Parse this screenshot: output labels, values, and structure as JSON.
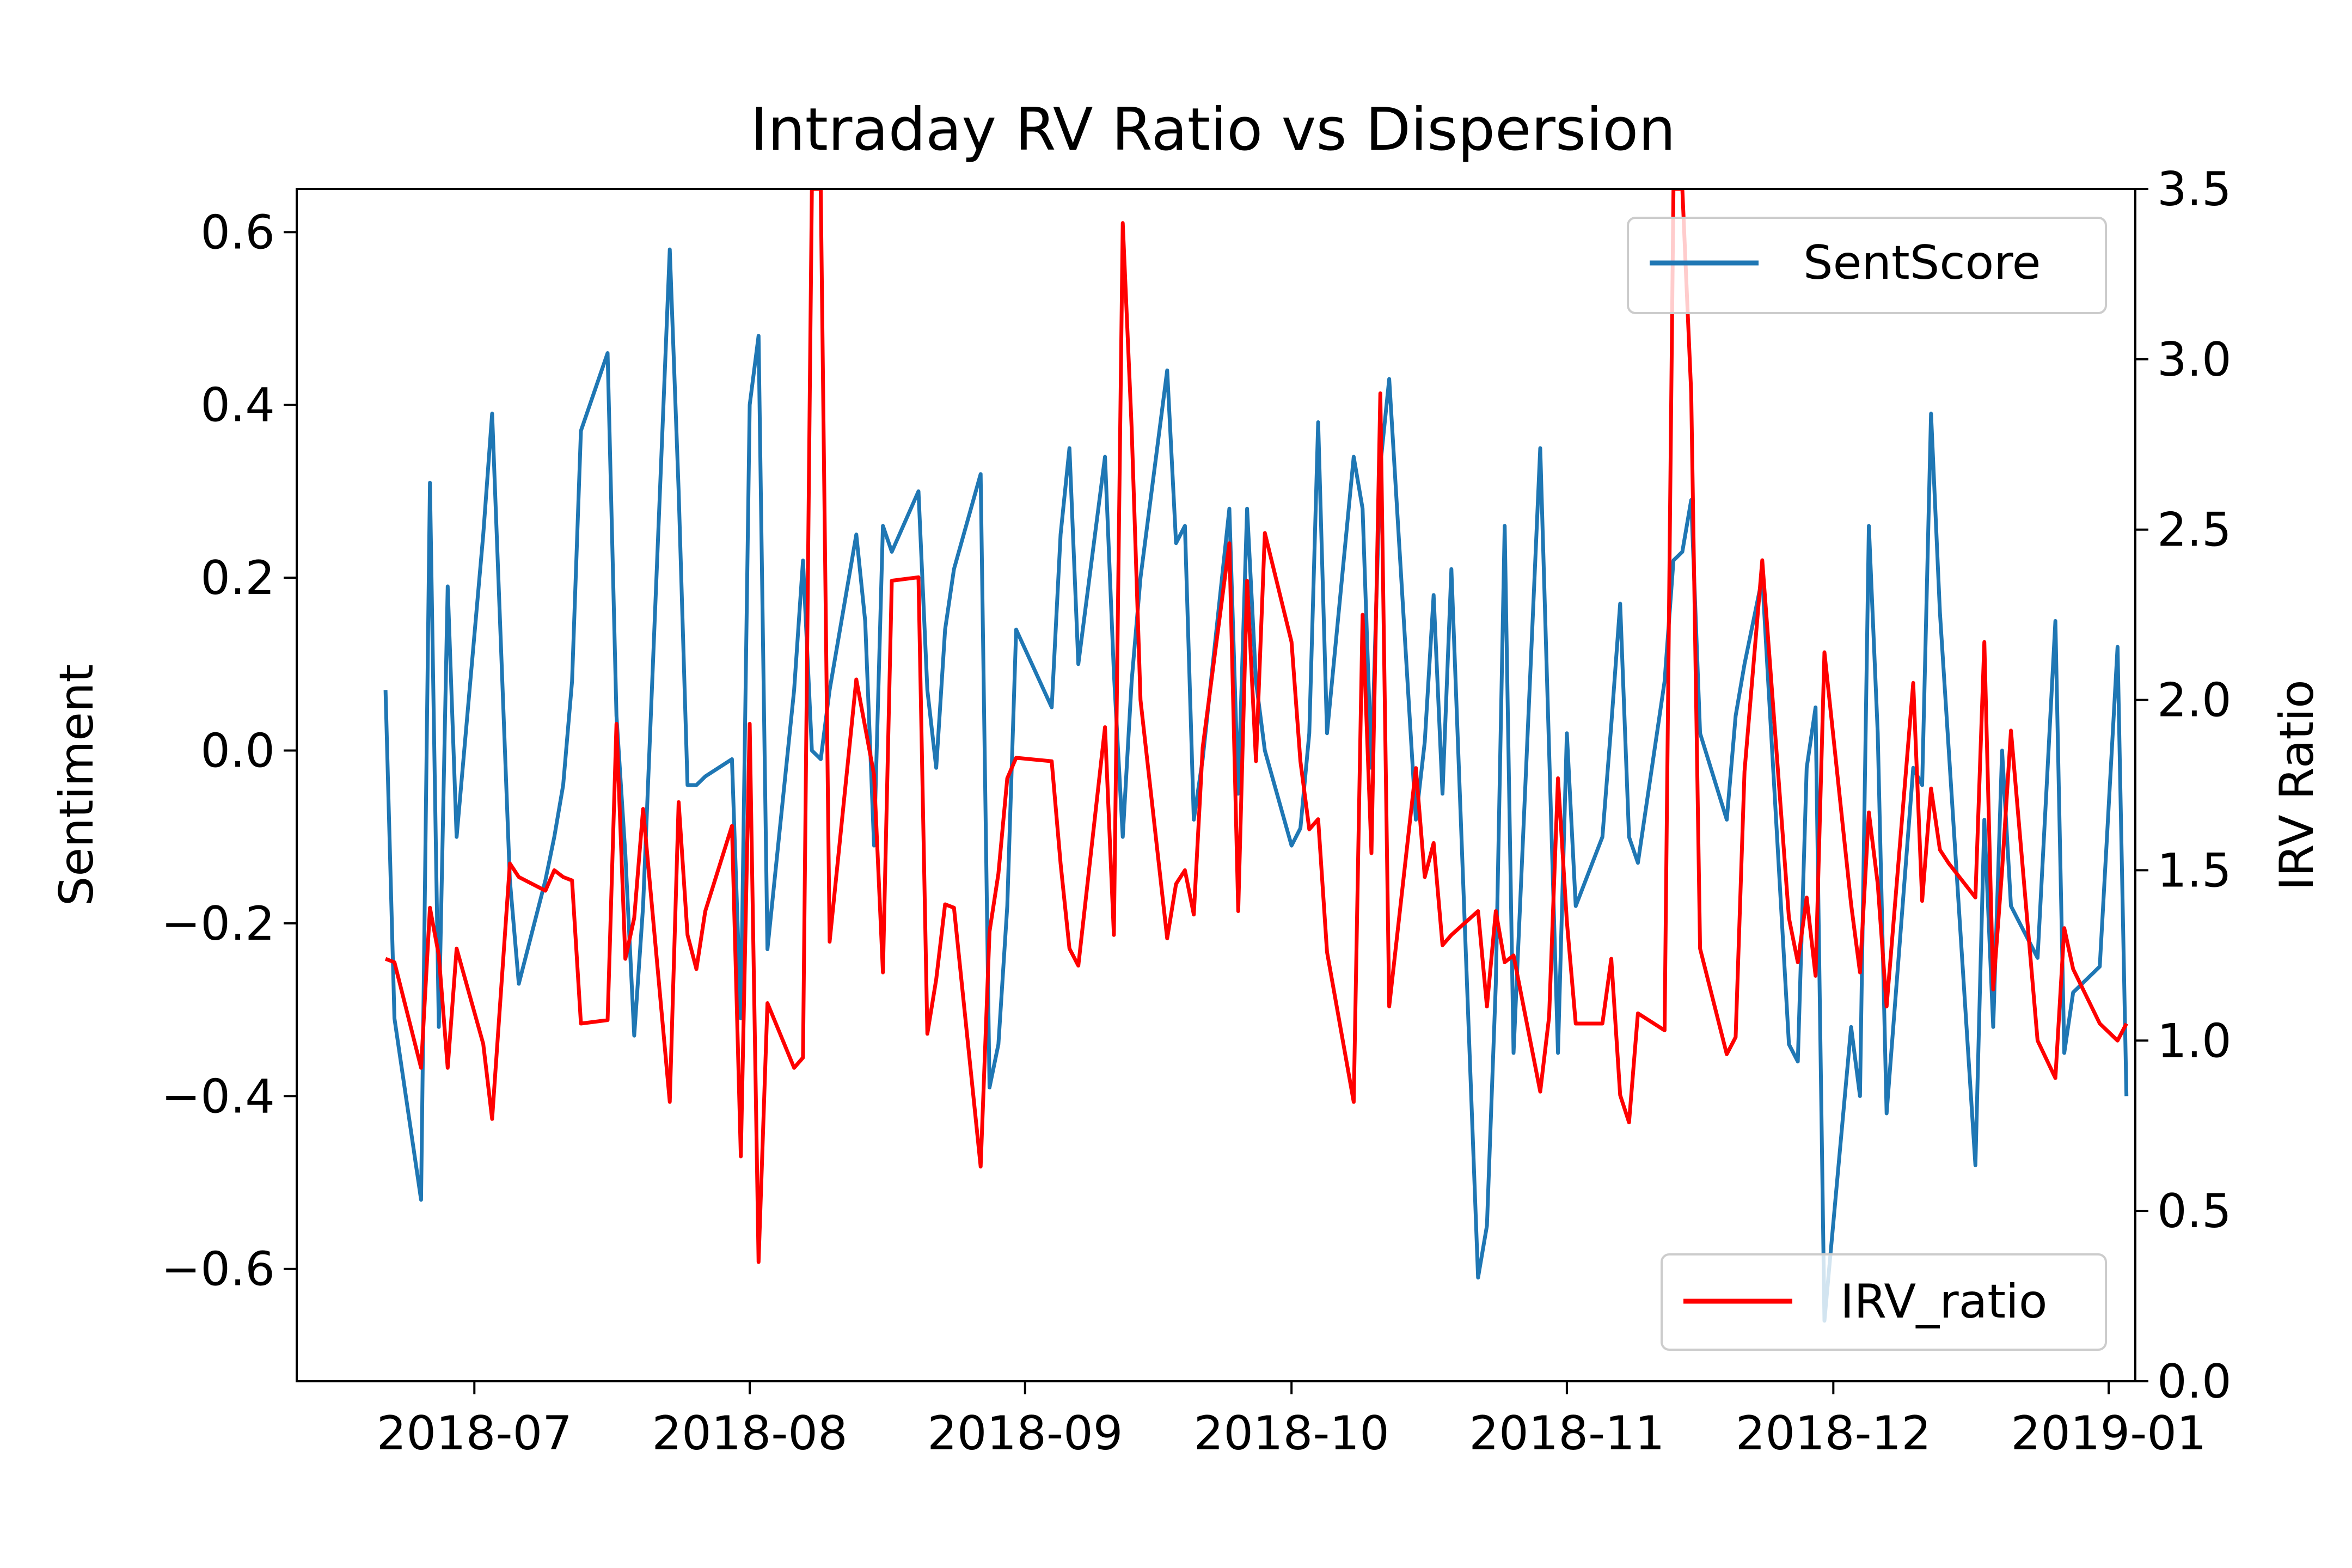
{
  "chart_data": {
    "type": "line",
    "title": "Intraday RV Ratio vs Dispersion",
    "xlabel": "",
    "ylabel": "Sentiment",
    "y2label": "IRV Ratio",
    "x_ticks": [
      "2018-07",
      "2018-08",
      "2018-09",
      "2018-10",
      "2018-11",
      "2018-12",
      "2019-01"
    ],
    "x_range": [
      "2018-06-11",
      "2019-01-04"
    ],
    "y_ticks": [
      "0.6",
      "0.4",
      "0.2",
      "0.0",
      "−0.2",
      "−0.4",
      "−0.6"
    ],
    "y_ticks_values": [
      0.6,
      0.4,
      0.2,
      0.0,
      -0.2,
      -0.4,
      -0.6
    ],
    "ylim": [
      -0.73,
      0.65
    ],
    "y2_ticks": [
      "3.5",
      "3.0",
      "2.5",
      "2.0",
      "1.5",
      "1.0",
      "0.5",
      "0.0"
    ],
    "y2_ticks_values": [
      3.5,
      3.0,
      2.5,
      2.0,
      1.5,
      1.0,
      0.5,
      0.0
    ],
    "y2lim": [
      0.0,
      3.5
    ],
    "grid": false,
    "legend_left": {
      "position": "upper right",
      "label": "SentScore"
    },
    "legend_right": {
      "position": "lower right",
      "label": "IRV_ratio"
    },
    "series": [
      {
        "name": "SentScore",
        "axis": "left",
        "color": "#1f77b4",
        "points": [
          [
            "2018-06-21",
            0.07
          ],
          [
            "2018-06-22",
            -0.31
          ],
          [
            "2018-06-25",
            -0.52
          ],
          [
            "2018-06-26",
            0.31
          ],
          [
            "2018-06-27",
            -0.32
          ],
          [
            "2018-06-28",
            0.19
          ],
          [
            "2018-06-29",
            -0.1
          ],
          [
            "2018-07-02",
            0.25
          ],
          [
            "2018-07-03",
            0.39
          ],
          [
            "2018-07-05",
            -0.15
          ],
          [
            "2018-07-06",
            -0.27
          ],
          [
            "2018-07-09",
            -0.15
          ],
          [
            "2018-07-10",
            -0.1
          ],
          [
            "2018-07-11",
            -0.04
          ],
          [
            "2018-07-12",
            0.08
          ],
          [
            "2018-07-13",
            0.37
          ],
          [
            "2018-07-16",
            0.46
          ],
          [
            "2018-07-17",
            0.04
          ],
          [
            "2018-07-18",
            -0.12
          ],
          [
            "2018-07-19",
            -0.33
          ],
          [
            "2018-07-20",
            -0.18
          ],
          [
            "2018-07-23",
            0.58
          ],
          [
            "2018-07-24",
            0.3
          ],
          [
            "2018-07-25",
            -0.04
          ],
          [
            "2018-07-26",
            -0.04
          ],
          [
            "2018-07-27",
            -0.03
          ],
          [
            "2018-07-30",
            -0.01
          ],
          [
            "2018-07-31",
            -0.31
          ],
          [
            "2018-08-01",
            0.4
          ],
          [
            "2018-08-02",
            0.48
          ],
          [
            "2018-08-03",
            -0.23
          ],
          [
            "2018-08-06",
            0.07
          ],
          [
            "2018-08-07",
            0.22
          ],
          [
            "2018-08-08",
            0.0
          ],
          [
            "2018-08-09",
            -0.01
          ],
          [
            "2018-08-10",
            0.07
          ],
          [
            "2018-08-13",
            0.25
          ],
          [
            "2018-08-14",
            0.15
          ],
          [
            "2018-08-15",
            -0.11
          ],
          [
            "2018-08-16",
            0.26
          ],
          [
            "2018-08-17",
            0.23
          ],
          [
            "2018-08-20",
            0.3
          ],
          [
            "2018-08-21",
            0.07
          ],
          [
            "2018-08-22",
            -0.02
          ],
          [
            "2018-08-23",
            0.14
          ],
          [
            "2018-08-24",
            0.21
          ],
          [
            "2018-08-27",
            0.32
          ],
          [
            "2018-08-28",
            -0.39
          ],
          [
            "2018-08-29",
            -0.34
          ],
          [
            "2018-08-30",
            -0.18
          ],
          [
            "2018-08-31",
            0.14
          ],
          [
            "2018-09-04",
            0.05
          ],
          [
            "2018-09-05",
            0.25
          ],
          [
            "2018-09-06",
            0.35
          ],
          [
            "2018-09-07",
            0.1
          ],
          [
            "2018-09-10",
            0.34
          ],
          [
            "2018-09-11",
            0.09
          ],
          [
            "2018-09-12",
            -0.1
          ],
          [
            "2018-09-13",
            0.08
          ],
          [
            "2018-09-14",
            0.2
          ],
          [
            "2018-09-17",
            0.44
          ],
          [
            "2018-09-18",
            0.24
          ],
          [
            "2018-09-19",
            0.26
          ],
          [
            "2018-09-20",
            -0.08
          ],
          [
            "2018-09-21",
            -0.01
          ],
          [
            "2018-09-24",
            0.28
          ],
          [
            "2018-09-25",
            -0.05
          ],
          [
            "2018-09-26",
            0.28
          ],
          [
            "2018-09-27",
            0.08
          ],
          [
            "2018-09-28",
            0.0
          ],
          [
            "2018-10-01",
            -0.11
          ],
          [
            "2018-10-02",
            -0.09
          ],
          [
            "2018-10-03",
            0.02
          ],
          [
            "2018-10-04",
            0.38
          ],
          [
            "2018-10-05",
            0.02
          ],
          [
            "2018-10-08",
            0.34
          ],
          [
            "2018-10-09",
            0.28
          ],
          [
            "2018-10-10",
            -0.02
          ],
          [
            "2018-10-11",
            0.33
          ],
          [
            "2018-10-12",
            0.43
          ],
          [
            "2018-10-15",
            -0.08
          ],
          [
            "2018-10-16",
            0.01
          ],
          [
            "2018-10-17",
            0.18
          ],
          [
            "2018-10-18",
            -0.05
          ],
          [
            "2018-10-19",
            0.21
          ],
          [
            "2018-10-22",
            -0.61
          ],
          [
            "2018-10-23",
            -0.55
          ],
          [
            "2018-10-24",
            -0.27
          ],
          [
            "2018-10-25",
            0.26
          ],
          [
            "2018-10-26",
            -0.35
          ],
          [
            "2018-10-29",
            0.35
          ],
          [
            "2018-10-30",
            0.0
          ],
          [
            "2018-10-31",
            -0.35
          ],
          [
            "2018-11-01",
            0.02
          ],
          [
            "2018-11-02",
            -0.18
          ],
          [
            "2018-11-05",
            -0.1
          ],
          [
            "2018-11-06",
            0.03
          ],
          [
            "2018-11-07",
            0.17
          ],
          [
            "2018-11-08",
            -0.1
          ],
          [
            "2018-11-09",
            -0.13
          ],
          [
            "2018-11-12",
            0.08
          ],
          [
            "2018-11-13",
            0.22
          ],
          [
            "2018-11-14",
            0.23
          ],
          [
            "2018-11-15",
            0.29
          ],
          [
            "2018-11-16",
            0.02
          ],
          [
            "2018-11-19",
            -0.08
          ],
          [
            "2018-11-20",
            0.04
          ],
          [
            "2018-11-21",
            0.1
          ],
          [
            "2018-11-23",
            0.2
          ],
          [
            "2018-11-26",
            -0.34
          ],
          [
            "2018-11-27",
            -0.36
          ],
          [
            "2018-11-28",
            -0.02
          ],
          [
            "2018-11-29",
            0.05
          ],
          [
            "2018-11-30",
            -0.66
          ],
          [
            "2018-12-03",
            -0.32
          ],
          [
            "2018-12-04",
            -0.4
          ],
          [
            "2018-12-05",
            0.26
          ],
          [
            "2018-12-06",
            0.02
          ],
          [
            "2018-12-07",
            -0.42
          ],
          [
            "2018-12-10",
            -0.02
          ],
          [
            "2018-12-11",
            -0.04
          ],
          [
            "2018-12-12",
            0.39
          ],
          [
            "2018-12-13",
            0.16
          ],
          [
            "2018-12-14",
            0.0
          ],
          [
            "2018-12-17",
            -0.48
          ],
          [
            "2018-12-18",
            -0.08
          ],
          [
            "2018-12-19",
            -0.32
          ],
          [
            "2018-12-20",
            0.0
          ],
          [
            "2018-12-21",
            -0.18
          ],
          [
            "2018-12-24",
            -0.24
          ],
          [
            "2018-12-26",
            0.15
          ],
          [
            "2018-12-27",
            -0.35
          ],
          [
            "2018-12-28",
            -0.28
          ],
          [
            "2018-12-31",
            -0.25
          ],
          [
            "2019-01-02",
            0.12
          ],
          [
            "2019-01-03",
            -0.4
          ]
        ]
      },
      {
        "name": "IRV_ratio",
        "axis": "right",
        "color": "#ff0000",
        "points": [
          [
            "2018-06-21",
            1.24
          ],
          [
            "2018-06-22",
            1.23
          ],
          [
            "2018-06-25",
            0.92
          ],
          [
            "2018-06-26",
            1.39
          ],
          [
            "2018-06-27",
            1.25
          ],
          [
            "2018-06-28",
            0.92
          ],
          [
            "2018-06-29",
            1.27
          ],
          [
            "2018-07-02",
            0.99
          ],
          [
            "2018-07-03",
            0.77
          ],
          [
            "2018-07-05",
            1.52
          ],
          [
            "2018-07-06",
            1.48
          ],
          [
            "2018-07-09",
            1.44
          ],
          [
            "2018-07-10",
            1.5
          ],
          [
            "2018-07-11",
            1.48
          ],
          [
            "2018-07-12",
            1.47
          ],
          [
            "2018-07-13",
            1.05
          ],
          [
            "2018-07-16",
            1.06
          ],
          [
            "2018-07-17",
            1.93
          ],
          [
            "2018-07-18",
            1.24
          ],
          [
            "2018-07-19",
            1.36
          ],
          [
            "2018-07-20",
            1.68
          ],
          [
            "2018-07-23",
            0.82
          ],
          [
            "2018-07-24",
            1.7
          ],
          [
            "2018-07-25",
            1.31
          ],
          [
            "2018-07-26",
            1.21
          ],
          [
            "2018-07-27",
            1.38
          ],
          [
            "2018-07-30",
            1.63
          ],
          [
            "2018-07-31",
            0.66
          ],
          [
            "2018-08-01",
            1.93
          ],
          [
            "2018-08-02",
            0.35
          ],
          [
            "2018-08-03",
            1.11
          ],
          [
            "2018-08-06",
            0.92
          ],
          [
            "2018-08-07",
            0.95
          ],
          [
            "2018-08-08",
            3.5
          ],
          [
            "2018-08-09",
            3.5
          ],
          [
            "2018-08-10",
            1.29
          ],
          [
            "2018-08-13",
            2.06
          ],
          [
            "2018-08-14",
            1.92
          ],
          [
            "2018-08-15",
            1.78
          ],
          [
            "2018-08-16",
            1.2
          ],
          [
            "2018-08-17",
            2.35
          ],
          [
            "2018-08-20",
            2.36
          ],
          [
            "2018-08-21",
            1.02
          ],
          [
            "2018-08-22",
            1.18
          ],
          [
            "2018-08-23",
            1.4
          ],
          [
            "2018-08-24",
            1.39
          ],
          [
            "2018-08-27",
            0.63
          ],
          [
            "2018-08-28",
            1.32
          ],
          [
            "2018-08-29",
            1.49
          ],
          [
            "2018-08-30",
            1.77
          ],
          [
            "2018-08-31",
            1.83
          ],
          [
            "2018-09-04",
            1.82
          ],
          [
            "2018-09-05",
            1.52
          ],
          [
            "2018-09-06",
            1.27
          ],
          [
            "2018-09-07",
            1.22
          ],
          [
            "2018-09-10",
            1.92
          ],
          [
            "2018-09-11",
            1.31
          ],
          [
            "2018-09-12",
            3.4
          ],
          [
            "2018-09-13",
            2.8
          ],
          [
            "2018-09-14",
            2.0
          ],
          [
            "2018-09-17",
            1.3
          ],
          [
            "2018-09-18",
            1.46
          ],
          [
            "2018-09-19",
            1.5
          ],
          [
            "2018-09-20",
            1.37
          ],
          [
            "2018-09-21",
            1.86
          ],
          [
            "2018-09-24",
            2.46
          ],
          [
            "2018-09-25",
            1.38
          ],
          [
            "2018-09-26",
            2.35
          ],
          [
            "2018-09-27",
            1.82
          ],
          [
            "2018-09-28",
            2.49
          ],
          [
            "2018-10-01",
            2.17
          ],
          [
            "2018-10-02",
            1.82
          ],
          [
            "2018-10-03",
            1.62
          ],
          [
            "2018-10-04",
            1.65
          ],
          [
            "2018-10-05",
            1.26
          ],
          [
            "2018-10-08",
            0.82
          ],
          [
            "2018-10-09",
            2.25
          ],
          [
            "2018-10-10",
            1.55
          ],
          [
            "2018-10-11",
            2.9
          ],
          [
            "2018-10-12",
            1.1
          ],
          [
            "2018-10-15",
            1.8
          ],
          [
            "2018-10-16",
            1.48
          ],
          [
            "2018-10-17",
            1.58
          ],
          [
            "2018-10-18",
            1.28
          ],
          [
            "2018-10-19",
            1.31
          ],
          [
            "2018-10-22",
            1.38
          ],
          [
            "2018-10-23",
            1.1
          ],
          [
            "2018-10-24",
            1.38
          ],
          [
            "2018-10-25",
            1.23
          ],
          [
            "2018-10-26",
            1.25
          ],
          [
            "2018-10-29",
            0.85
          ],
          [
            "2018-10-30",
            1.07
          ],
          [
            "2018-10-31",
            1.77
          ],
          [
            "2018-11-01",
            1.35
          ],
          [
            "2018-11-02",
            1.05
          ],
          [
            "2018-11-05",
            1.05
          ],
          [
            "2018-11-06",
            1.24
          ],
          [
            "2018-11-07",
            0.84
          ],
          [
            "2018-11-08",
            0.76
          ],
          [
            "2018-11-09",
            1.08
          ],
          [
            "2018-11-12",
            1.03
          ],
          [
            "2018-11-13",
            3.5
          ],
          [
            "2018-11-14",
            3.5
          ],
          [
            "2018-11-15",
            2.9
          ],
          [
            "2018-11-16",
            1.27
          ],
          [
            "2018-11-19",
            0.96
          ],
          [
            "2018-11-20",
            1.01
          ],
          [
            "2018-11-21",
            1.79
          ],
          [
            "2018-11-23",
            2.41
          ],
          [
            "2018-11-26",
            1.36
          ],
          [
            "2018-11-27",
            1.23
          ],
          [
            "2018-11-28",
            1.42
          ],
          [
            "2018-11-29",
            1.19
          ],
          [
            "2018-11-30",
            2.14
          ],
          [
            "2018-12-03",
            1.4
          ],
          [
            "2018-12-04",
            1.2
          ],
          [
            "2018-12-05",
            1.67
          ],
          [
            "2018-12-06",
            1.46
          ],
          [
            "2018-12-07",
            1.1
          ],
          [
            "2018-12-10",
            2.05
          ],
          [
            "2018-12-11",
            1.41
          ],
          [
            "2018-12-12",
            1.74
          ],
          [
            "2018-12-13",
            1.56
          ],
          [
            "2018-12-14",
            1.52
          ],
          [
            "2018-12-17",
            1.42
          ],
          [
            "2018-12-18",
            2.17
          ],
          [
            "2018-12-19",
            1.15
          ],
          [
            "2018-12-20",
            1.5
          ],
          [
            "2018-12-21",
            1.91
          ],
          [
            "2018-12-24",
            1.0
          ],
          [
            "2018-12-26",
            0.89
          ],
          [
            "2018-12-27",
            1.33
          ],
          [
            "2018-12-28",
            1.21
          ],
          [
            "2018-12-31",
            1.05
          ],
          [
            "2019-01-02",
            1.0
          ],
          [
            "2019-01-03",
            1.05
          ]
        ]
      }
    ]
  }
}
